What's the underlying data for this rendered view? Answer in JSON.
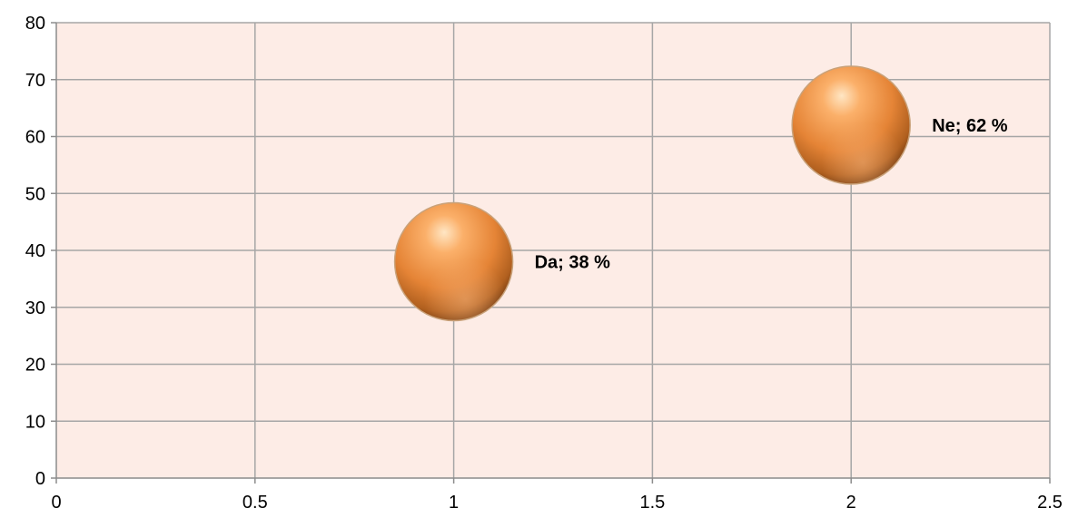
{
  "chart_data": {
    "type": "bubble",
    "title": "",
    "xlabel": "",
    "ylabel": "",
    "xlim": [
      0,
      2.5
    ],
    "ylim": [
      0,
      80
    ],
    "x_ticks": [
      0,
      0.5,
      1,
      1.5,
      2,
      2.5
    ],
    "y_ticks": [
      0,
      10,
      20,
      30,
      40,
      50,
      60,
      70,
      80
    ],
    "grid": true,
    "legend": "none",
    "points": [
      {
        "x": 1,
        "y": 38,
        "label": "Da; 38 %"
      },
      {
        "x": 2,
        "y": 62,
        "label": "Ne; 62 %"
      }
    ],
    "colors": {
      "plot_background": "#fdece6",
      "gridline": "#a6a6a6",
      "bubble_light": "#ffd9a8",
      "bubble_mid": "#f79646",
      "bubble_dark": "#7a3f12"
    }
  }
}
